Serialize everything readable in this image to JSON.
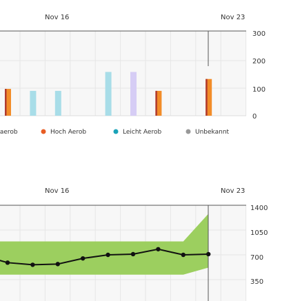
{
  "chart_data": [
    {
      "type": "bar",
      "stacked": false,
      "date_labels": [
        "Nov 16",
        "Nov 23"
      ],
      "y_ticks": [
        "300",
        "200",
        "100",
        "0"
      ],
      "ylim": [
        0,
        300
      ],
      "grid": true,
      "legend_position": "bottom",
      "colors": {
        "anaerob": "#f28c28",
        "hoch_aerob": "#f28c28",
        "leicht_aerob": "#a8dde8",
        "unbekannt": "#d6cdf5",
        "dark_bar": "#c0392b"
      },
      "legend": [
        {
          "label": "Anaerob",
          "color": "#d9534f"
        },
        {
          "label": "Hoch Aerob",
          "color": "#e85d24"
        },
        {
          "label": "Leicht Aerob",
          "color": "#1aa3b8"
        },
        {
          "label": "Unbekannt",
          "color": "#999999"
        }
      ],
      "bars": [
        {
          "day": 0,
          "value": 95,
          "color": "#f28c28",
          "edge": "#b03a2e"
        },
        {
          "day": 1,
          "value": 88,
          "color": "#a8dde8"
        },
        {
          "day": 2,
          "value": 88,
          "color": "#a8dde8"
        },
        {
          "day": 4,
          "value": 155,
          "color": "#a8dde8"
        },
        {
          "day": 5,
          "value": 155,
          "color": "#d6cdf5"
        },
        {
          "day": 6,
          "value": 88,
          "color": "#f28c28",
          "edge": "#b03a2e"
        },
        {
          "day": 8,
          "value": 130,
          "color": "#f28c28",
          "edge": "#b03a2e"
        }
      ]
    },
    {
      "type": "line",
      "date_labels": [
        "Nov 16",
        "Nov 23"
      ],
      "y_ticks": [
        "1400",
        "1050",
        "700",
        "350"
      ],
      "ylim": [
        0,
        1400
      ],
      "grid": true,
      "band_color": "#9ccf5f",
      "line_color": "#111111",
      "band": [
        {
          "day": -0.5,
          "low": 420,
          "high": 890
        },
        {
          "day": 0,
          "low": 420,
          "high": 890
        },
        {
          "day": 7,
          "low": 420,
          "high": 890
        },
        {
          "day": 8,
          "low": 520,
          "high": 1280
        }
      ],
      "points": [
        {
          "day": -0.5,
          "value": 640
        },
        {
          "day": 0,
          "value": 590
        },
        {
          "day": 1,
          "value": 560
        },
        {
          "day": 2,
          "value": 570
        },
        {
          "day": 3,
          "value": 650
        },
        {
          "day": 4,
          "value": 700
        },
        {
          "day": 5,
          "value": 710
        },
        {
          "day": 6,
          "value": 780
        },
        {
          "day": 7,
          "value": 700
        },
        {
          "day": 8,
          "value": 710
        }
      ]
    }
  ]
}
